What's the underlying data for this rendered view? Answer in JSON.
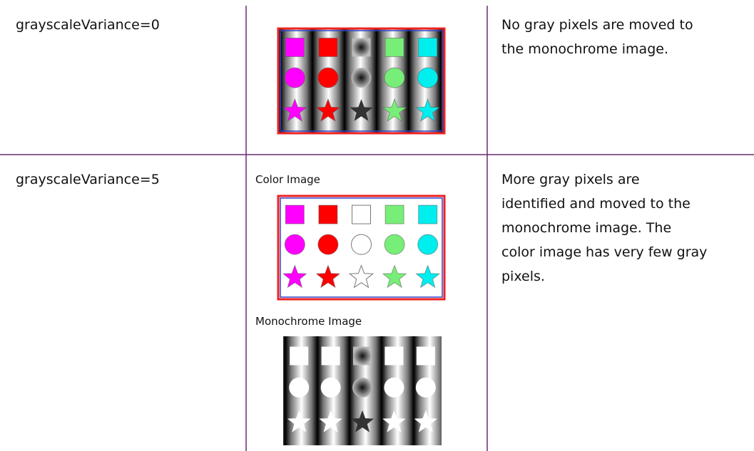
{
  "table": {
    "rows": [
      {
        "setting": "grayscaleVariance=0",
        "description": [
          "No gray pixels are moved to",
          "the monochrome image."
        ]
      },
      {
        "setting": "grayscaleVariance=5",
        "captions": [
          "Color Image",
          "Monochrome Image"
        ],
        "description": [
          "More gray pixels are",
          "identified and moved to the",
          "monochrome image. The",
          "color image has very few gray",
          "pixels."
        ]
      }
    ]
  }
}
